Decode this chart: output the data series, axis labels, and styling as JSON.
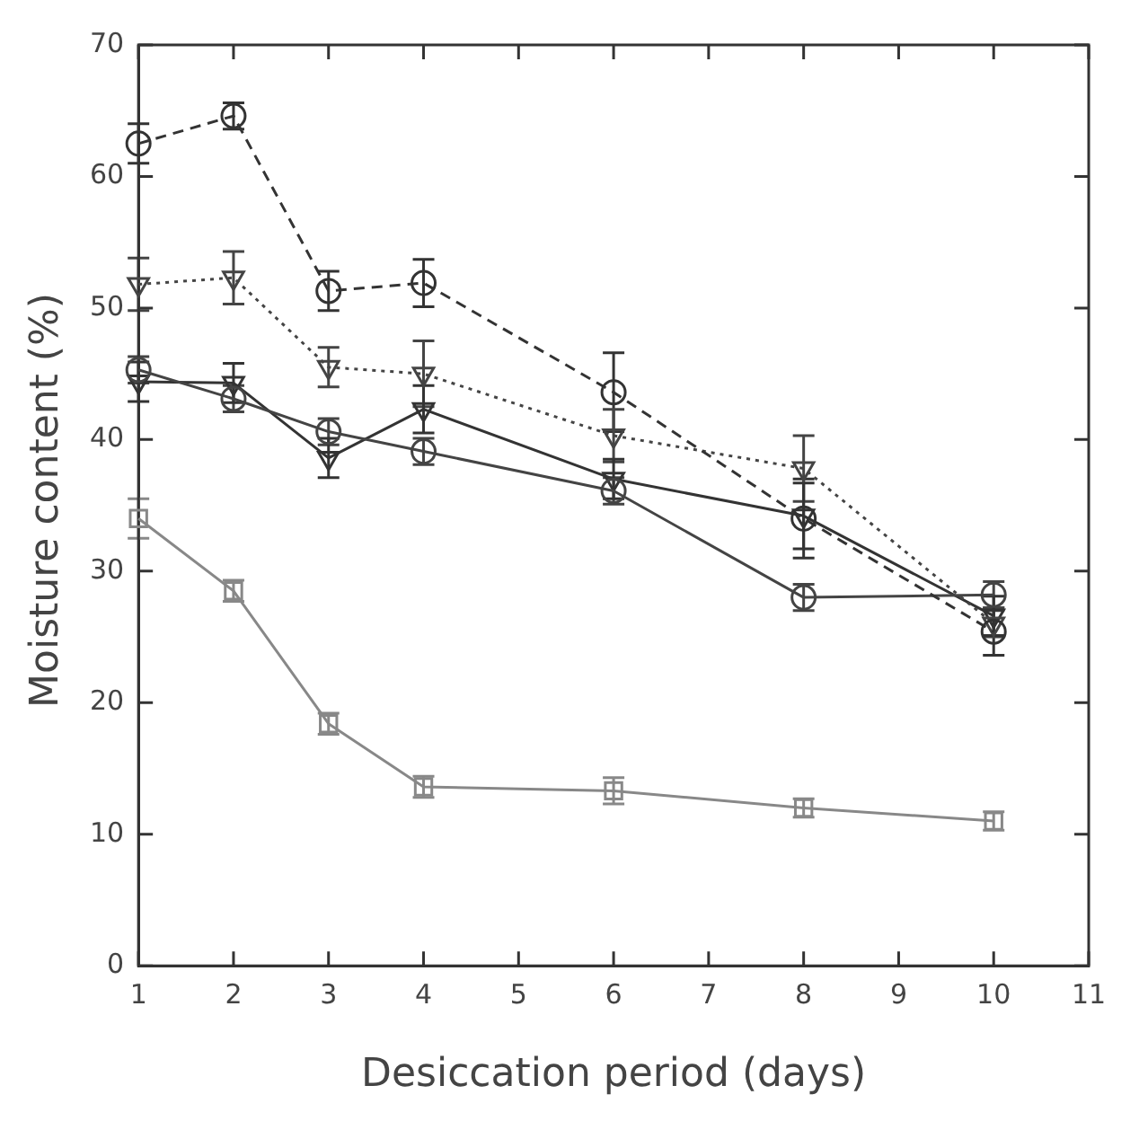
{
  "chart_data": {
    "type": "line",
    "xlabel": "Desiccation period (days)",
    "ylabel": "Moisture content (%)",
    "x": [
      1,
      2,
      3,
      4,
      6,
      8,
      10
    ],
    "xlim": [
      1,
      11
    ],
    "xticks": [
      1,
      2,
      3,
      4,
      5,
      6,
      7,
      8,
      9,
      10,
      11
    ],
    "ylim": [
      0,
      70
    ],
    "yticks": [
      0,
      10,
      20,
      30,
      40,
      50,
      60,
      70
    ],
    "grid": false,
    "legend": false,
    "series": [
      {
        "color": "#333333",
        "marker": "circle",
        "line_style": "dashed",
        "values": [
          62.5,
          64.6,
          51.3,
          51.9,
          43.6,
          34,
          25.4
        ],
        "errors": [
          1.5,
          1,
          1.5,
          1.8,
          3,
          3,
          1.8
        ]
      },
      {
        "color": "#444444",
        "marker": "triangle",
        "line_style": "dotted",
        "values": [
          51.8,
          52.3,
          45.5,
          45,
          40.3,
          37.8,
          26
        ],
        "errors": [
          2,
          2,
          1.5,
          2.5,
          2,
          2.5,
          1
        ]
      },
      {
        "color": "#444444",
        "marker": "circle",
        "line_style": "solid",
        "values": [
          45.3,
          43.1,
          40.6,
          39.1,
          36.1,
          28,
          28.2
        ],
        "errors": [
          1,
          1,
          1,
          1,
          1,
          1,
          1
        ]
      },
      {
        "color": "#333333",
        "marker": "triangle",
        "line_style": "solid",
        "values": [
          44.4,
          44.3,
          38.6,
          42.3,
          37,
          34.2,
          26.6
        ],
        "errors": [
          1.5,
          1.5,
          1.5,
          1.8,
          1.5,
          2.5,
          1.5
        ]
      },
      {
        "color": "#888888",
        "marker": "square",
        "line_style": "solid",
        "values": [
          34,
          28.5,
          18.4,
          13.6,
          13.3,
          12,
          11
        ],
        "errors": [
          1.5,
          0.8,
          0.8,
          0.8,
          1,
          0.7,
          0.7
        ]
      }
    ]
  }
}
